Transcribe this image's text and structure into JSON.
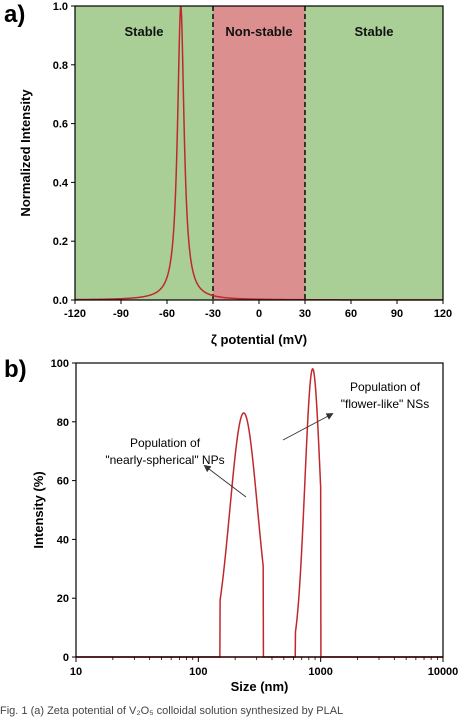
{
  "chart_data": [
    {
      "type": "line",
      "panel_label": "a)",
      "xlabel": "ζ potential (mV)",
      "ylabel": "Normalized Intensity",
      "xlim": [
        -120,
        120
      ],
      "ylim": [
        0,
        1.0
      ],
      "x_ticks": [
        -120,
        -90,
        -60,
        -30,
        0,
        30,
        60,
        90,
        120
      ],
      "x_tick_labels": [
        "-120",
        "-90",
        "-60",
        "-30",
        "0",
        "30",
        "60",
        "90",
        "120"
      ],
      "y_ticks": [
        0,
        0.2,
        0.4,
        0.6,
        0.8,
        1.0
      ],
      "y_tick_labels": [
        "0.0",
        "0.2",
        "0.4",
        "0.6",
        "0.8",
        "1.0"
      ],
      "regions": [
        {
          "label": "Stable",
          "from": -120,
          "to": -30,
          "color": "#a9cf97"
        },
        {
          "label": "Non-stable",
          "from": -30,
          "to": 30,
          "color": "#dc8f8f"
        },
        {
          "label": "Stable",
          "from": 30,
          "to": 120,
          "color": "#a9cf97"
        }
      ],
      "boundaries": [
        -30,
        30
      ],
      "peak": {
        "center": -51,
        "half_width": 2.6,
        "height": 1.0
      },
      "series": [
        {
          "x": [
            -120,
            -100,
            -90,
            -80,
            -70,
            -65,
            -60,
            -58,
            -56,
            -55,
            -54,
            -53,
            -52,
            -51.5,
            -51,
            -50.5,
            -50,
            -49,
            -48,
            -47,
            -46,
            -44,
            -42,
            -40,
            -35,
            -30,
            -20,
            0,
            30
          ],
          "y": [
            0.0,
            0.005,
            0.008,
            0.018,
            0.04,
            0.07,
            0.12,
            0.16,
            0.27,
            0.33,
            0.46,
            0.64,
            0.88,
            0.96,
            1.0,
            0.96,
            0.89,
            0.63,
            0.42,
            0.31,
            0.2,
            0.12,
            0.08,
            0.055,
            0.025,
            0.012,
            0.004,
            0.0,
            0.0
          ],
          "color": "#c0282d"
        }
      ]
    },
    {
      "type": "line",
      "panel_label": "b)",
      "xlabel": "Size (nm)",
      "ylabel": "Intensity (%)",
      "xscale": "log",
      "xlim": [
        10,
        10000
      ],
      "ylim": [
        0,
        100
      ],
      "x_ticks": [
        10,
        100,
        1000,
        10000
      ],
      "x_tick_labels": [
        "10",
        "100",
        "1000",
        "10000"
      ],
      "y_ticks": [
        0,
        20,
        40,
        60,
        80,
        100
      ],
      "y_tick_labels": [
        "0",
        "20",
        "40",
        "60",
        "80",
        "100"
      ],
      "series": [
        {
          "x": [
            10,
            150,
            160,
            175,
            190,
            205,
            220,
            235,
            250,
            265,
            280,
            300,
            320,
            340,
            10000
          ],
          "y": [
            0,
            0,
            8,
            30,
            55,
            72,
            80,
            83,
            80,
            68,
            48,
            22,
            5,
            0,
            0
          ],
          "color": "#c0282d"
        },
        {
          "x": [
            10,
            620,
            660,
            700,
            740,
            780,
            820,
            860,
            900,
            940,
            975,
            1000,
            10000
          ],
          "y": [
            0,
            0,
            25,
            60,
            82,
            92,
            97,
            98,
            90,
            60,
            25,
            0,
            0
          ],
          "color": "#c0282d"
        }
      ],
      "annotations": [
        {
          "lines": [
            "Population of",
            "\"nearly-spherical\" NPs"
          ]
        },
        {
          "lines": [
            "Population of",
            "\"flower-like\" NSs"
          ]
        }
      ]
    }
  ],
  "caption": "Fig. 1  (a) Zeta potential of V₂O₅ colloidal solution synthesized by PLAL"
}
